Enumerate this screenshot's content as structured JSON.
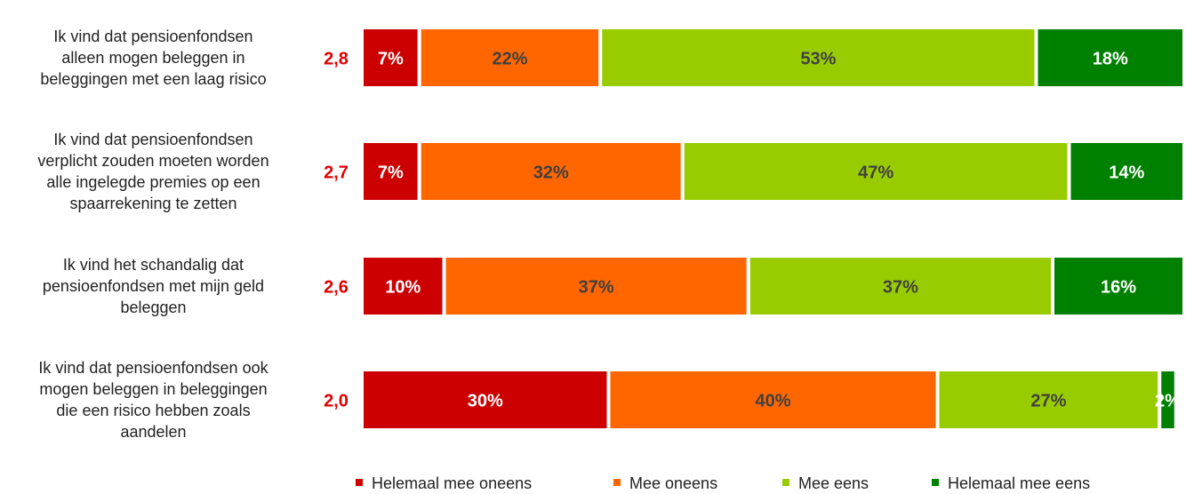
{
  "chart_data": {
    "type": "stacked-bar-horizontal",
    "categories": [
      "Ik vind dat pensioenfondsen\nalleen mogen beleggen in\nbeleggingen met een laag risico",
      "Ik vind dat pensioenfondsen\nverplicht zouden moeten worden\nalle ingelegde premies op een\nspaarrekening te zetten",
      "Ik vind het schandalig dat\npensioenfondsen met mijn geld\nbeleggen",
      "Ik vind dat pensioenfondsen ook\nmogen beleggen in beleggingen\ndie een risico hebben zoals\naandelen"
    ],
    "scores": [
      2.8,
      2.7,
      2.6,
      2.0
    ],
    "score_labels": [
      "2,8",
      "2,7",
      "2,6",
      "2,0"
    ],
    "score_color": "#e00000",
    "xlim": [
      0,
      100
    ],
    "series": [
      {
        "name": "Helemaal mee oneens",
        "color": "#cc0000",
        "label_color": "#ffffff",
        "values": [
          7,
          7,
          10,
          30
        ],
        "value_labels": [
          "7%",
          "7%",
          "10%",
          "30%"
        ]
      },
      {
        "name": "Mee oneens",
        "color": "#ff6600",
        "label_color": "#404040",
        "values": [
          22,
          32,
          37,
          40
        ],
        "value_labels": [
          "22%",
          "32%",
          "37%",
          "40%"
        ]
      },
      {
        "name": "Mee eens",
        "color": "#99cc00",
        "label_color": "#404040",
        "values": [
          53,
          47,
          37,
          27
        ],
        "value_labels": [
          "53%",
          "47%",
          "37%",
          "27%"
        ]
      },
      {
        "name": "Helemaal mee eens",
        "color": "#008000",
        "label_color": "#ffffff",
        "values": [
          18,
          14,
          16,
          2
        ],
        "value_labels": [
          "18%",
          "14%",
          "16%",
          "2%"
        ]
      }
    ],
    "legend": "bottom"
  }
}
